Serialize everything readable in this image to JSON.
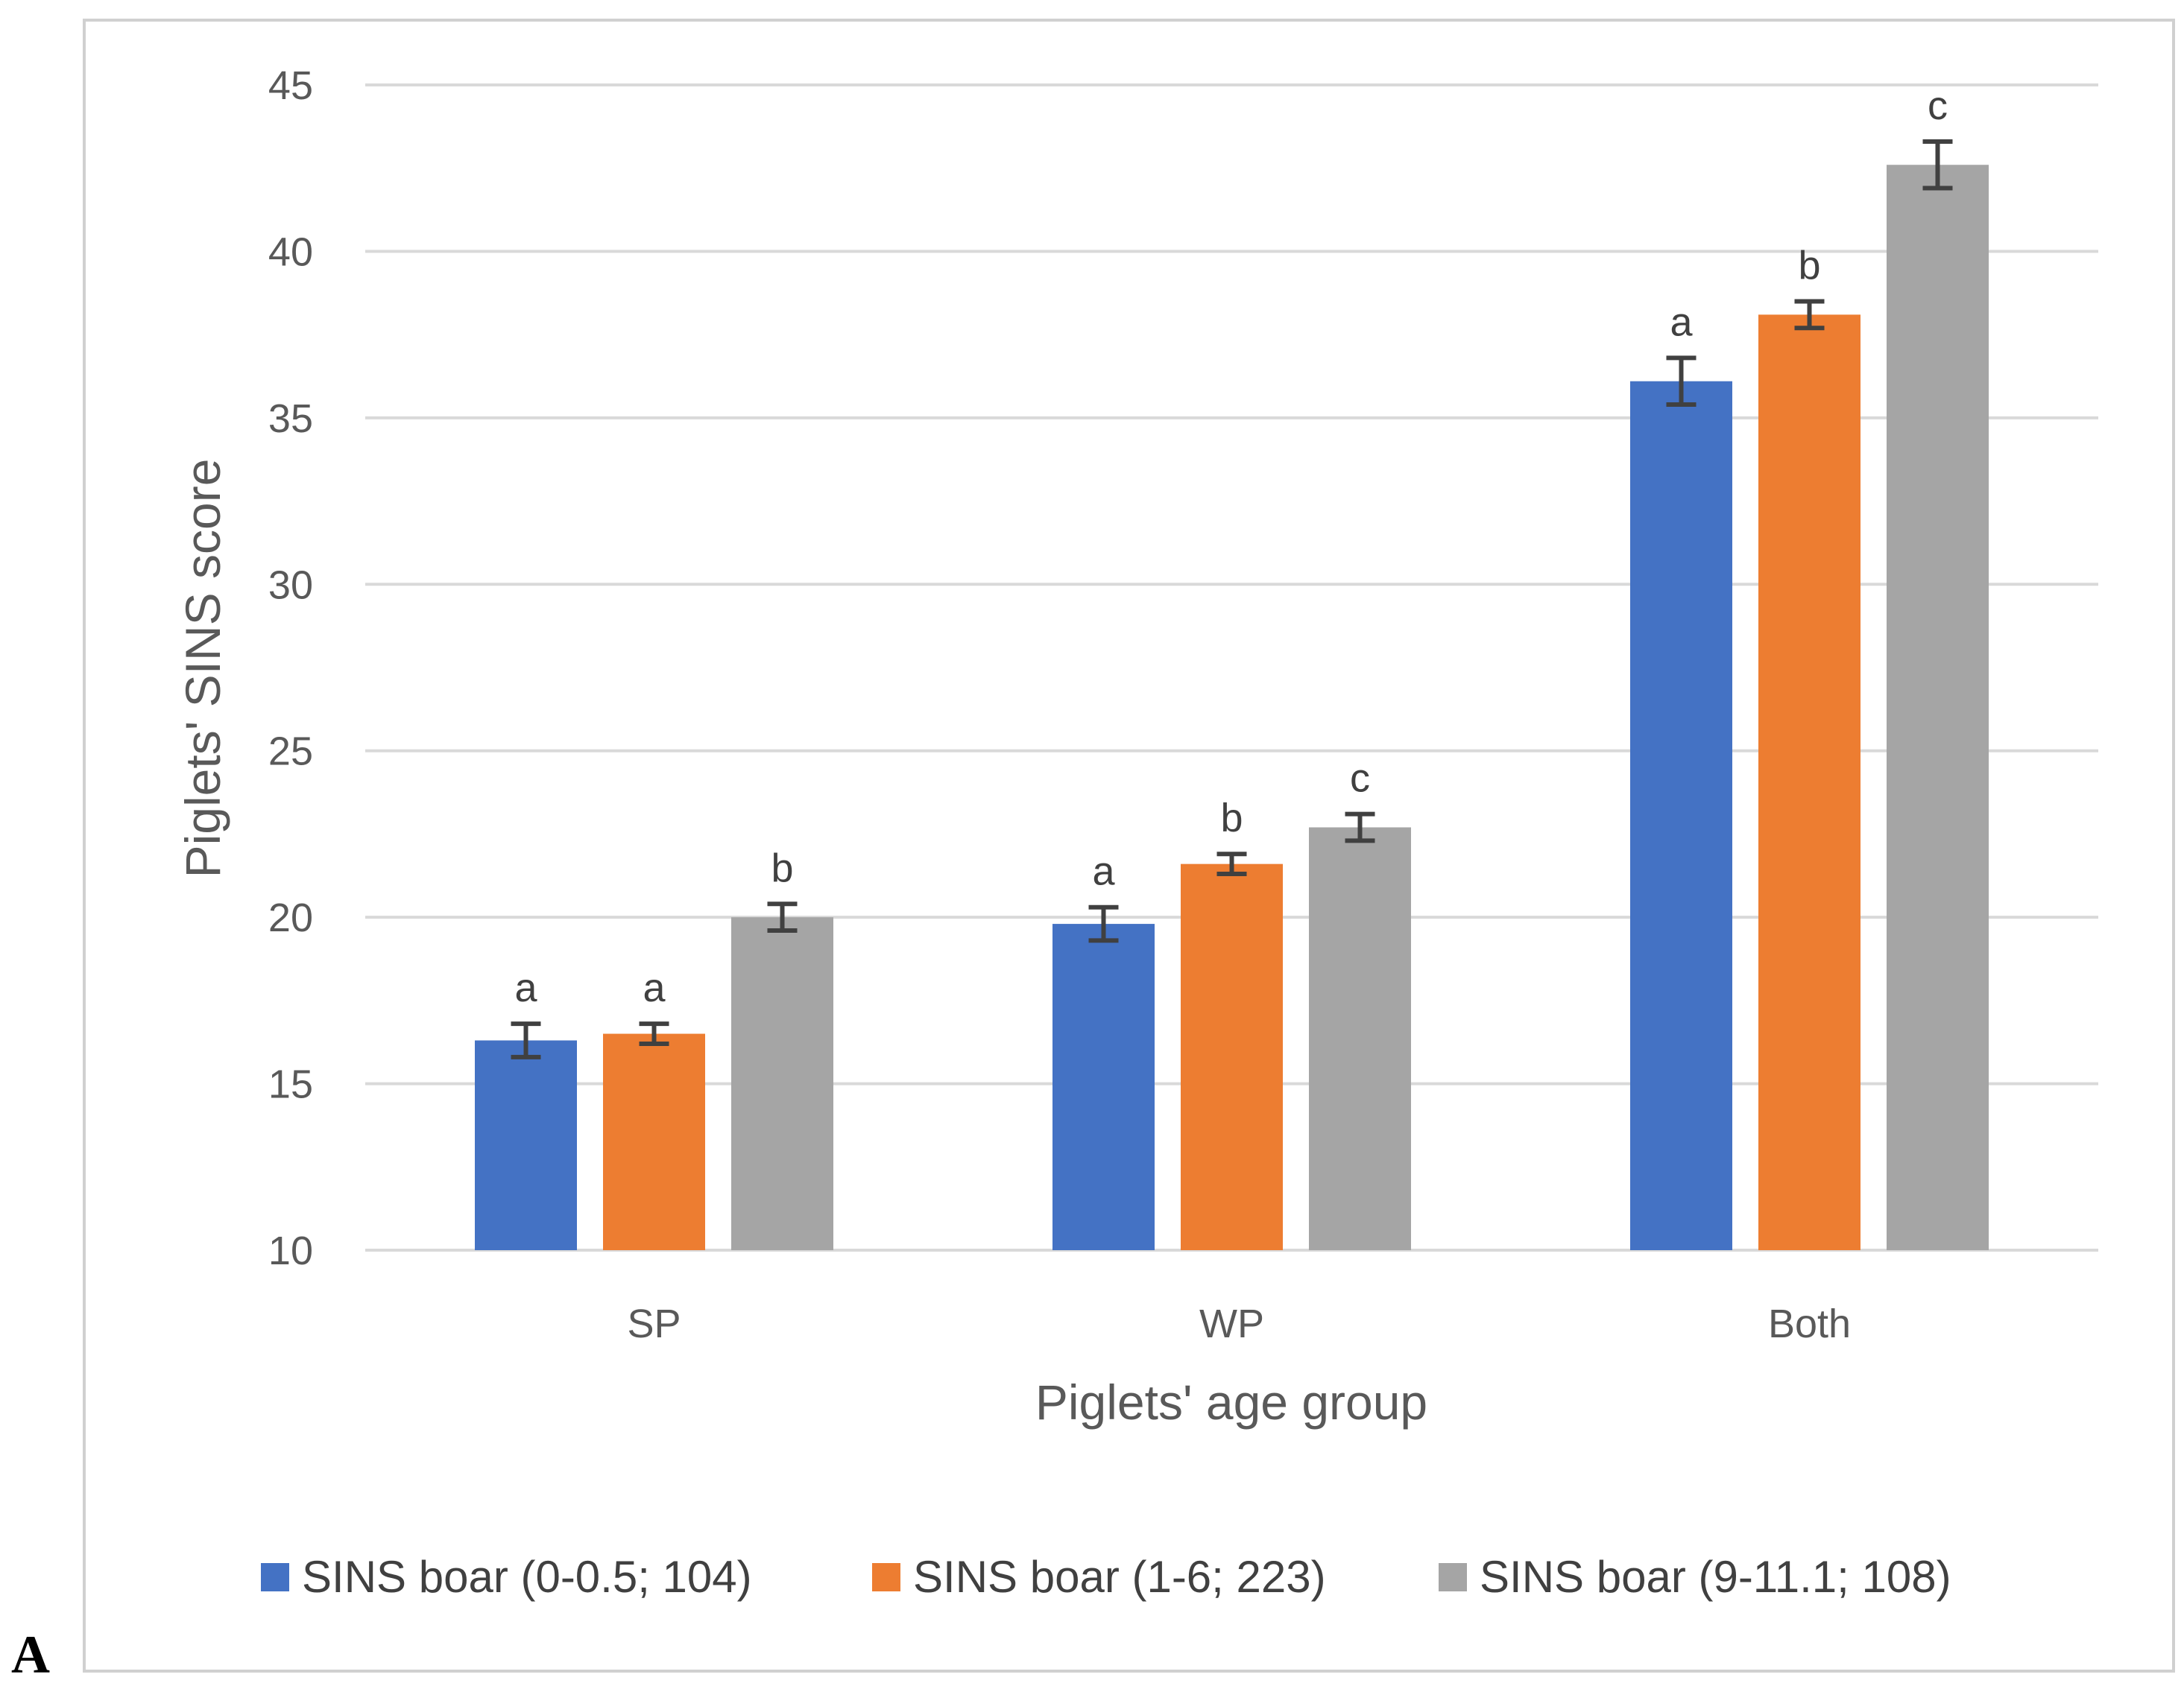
{
  "panel_label": "A",
  "colors": {
    "series": [
      "#4472C4",
      "#ED7D31",
      "#A5A5A5"
    ],
    "grid": "#D9D9D9",
    "frame": "#D0D0D0",
    "error_bar": "#404040"
  },
  "chart_data": {
    "type": "bar",
    "xlabel": "Piglets' age group",
    "ylabel": "Piglets' SINS score",
    "ylim": [
      10,
      45
    ],
    "yticks": [
      10,
      15,
      20,
      25,
      30,
      35,
      40,
      45
    ],
    "grid": true,
    "legend_position": "bottom",
    "categories": [
      "SP",
      "WP",
      "Both"
    ],
    "series": [
      {
        "name": "SINS boar (0-0.5; 104)",
        "values": [
          16.3,
          19.8,
          36.1
        ],
        "errors": [
          0.5,
          0.5,
          0.7
        ],
        "labels": [
          "a",
          "a",
          "a"
        ]
      },
      {
        "name": "SINS boar (1-6; 223)",
        "values": [
          16.5,
          21.6,
          38.1
        ],
        "errors": [
          0.3,
          0.3,
          0.4
        ],
        "labels": [
          "a",
          "b",
          "b"
        ]
      },
      {
        "name": "SINS boar (9-11.1; 108)",
        "values": [
          20.0,
          22.7,
          42.6
        ],
        "errors": [
          0.4,
          0.4,
          0.7
        ],
        "labels": [
          "b",
          "c",
          "c"
        ]
      }
    ]
  }
}
